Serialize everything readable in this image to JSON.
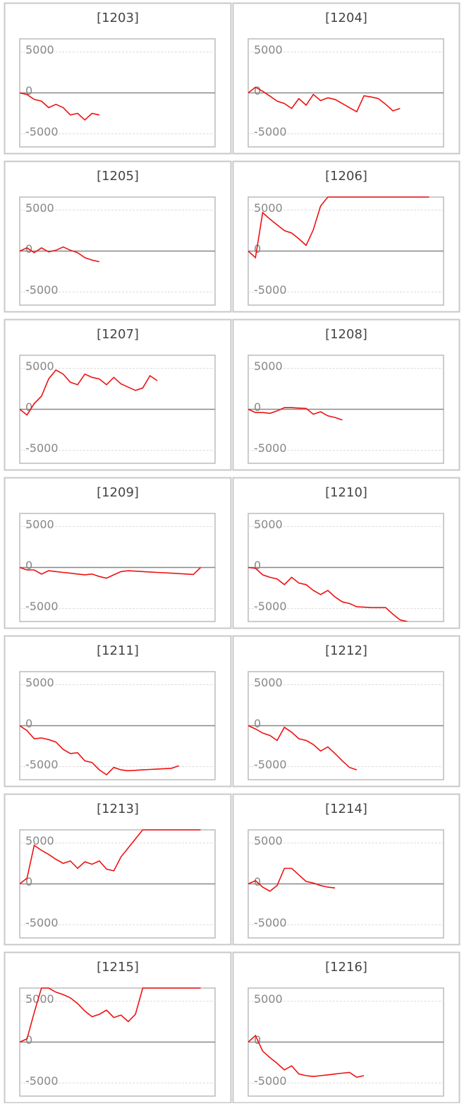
{
  "chart_data": [
    {
      "type": "line",
      "title": "[1203]",
      "color": "#ee1111",
      "ylim": [
        -6600,
        6600
      ],
      "xlim": [
        0,
        27
      ],
      "yticks": [
        -5000,
        0,
        5000
      ],
      "grid": true,
      "values": [
        0,
        -200,
        -800,
        -1000,
        -1800,
        -1400,
        -1800,
        -2700,
        -2500,
        -3300,
        -2500,
        -2700
      ]
    },
    {
      "type": "line",
      "title": "[1204]",
      "color": "#ee1111",
      "ylim": [
        -6600,
        6600
      ],
      "xlim": [
        0,
        27
      ],
      "yticks": [
        -5000,
        0,
        5000
      ],
      "grid": true,
      "values": [
        0,
        700,
        200,
        -400,
        -1000,
        -1300,
        -1900,
        -700,
        -1500,
        -200,
        -950,
        -600,
        -800,
        -1300,
        -1800,
        -2300,
        -350,
        -500,
        -700,
        -1400,
        -2200,
        -1900
      ]
    },
    {
      "type": "line",
      "title": "[1205]",
      "color": "#ee1111",
      "ylim": [
        -6600,
        6600
      ],
      "xlim": [
        0,
        27
      ],
      "yticks": [
        -5000,
        0,
        5000
      ],
      "grid": true,
      "values": [
        0,
        400,
        -200,
        400,
        -100,
        100,
        500,
        100,
        -200,
        -800,
        -1100,
        -1300
      ]
    },
    {
      "type": "line",
      "title": "[1206]",
      "color": "#ee1111",
      "ylim": [
        -6600,
        6600
      ],
      "xlim": [
        0,
        27
      ],
      "yticks": [
        -5000,
        0,
        5000
      ],
      "grid": true,
      "values": [
        0,
        -800,
        4700,
        3900,
        3200,
        2500,
        2200,
        1500,
        700,
        2600,
        5500,
        6600,
        6600,
        6600,
        6600,
        6600,
        6600,
        6600,
        6600,
        6600,
        6600,
        6600,
        6600,
        6600,
        6600,
        6600
      ]
    },
    {
      "type": "line",
      "title": "[1207]",
      "color": "#ee1111",
      "ylim": [
        -6600,
        6600
      ],
      "xlim": [
        0,
        27
      ],
      "yticks": [
        -5000,
        0,
        5000
      ],
      "grid": true,
      "values": [
        0,
        -700,
        700,
        1600,
        3700,
        4800,
        4300,
        3300,
        3000,
        4300,
        3900,
        3700,
        3000,
        3900,
        3100,
        2700,
        2300,
        2600,
        4100,
        3500
      ]
    },
    {
      "type": "line",
      "title": "[1208]",
      "color": "#ee1111",
      "ylim": [
        -6600,
        6600
      ],
      "xlim": [
        0,
        27
      ],
      "yticks": [
        -5000,
        0,
        5000
      ],
      "grid": true,
      "values": [
        0,
        -400,
        -400,
        -500,
        -200,
        200,
        200,
        150,
        100,
        -600,
        -300,
        -800,
        -1000,
        -1300
      ]
    },
    {
      "type": "line",
      "title": "[1209]",
      "color": "#ee1111",
      "ylim": [
        -6600,
        6600
      ],
      "xlim": [
        0,
        27
      ],
      "yticks": [
        -5000,
        0,
        5000
      ],
      "grid": true,
      "values": [
        0,
        -300,
        -300,
        -800,
        -400,
        -500,
        -600,
        -700,
        -800,
        -900,
        -800,
        -1100,
        -1300,
        -900,
        -500,
        -400,
        -450,
        -500,
        -550,
        -600,
        -650,
        -700,
        -750,
        -800,
        -850,
        0
      ]
    },
    {
      "type": "line",
      "title": "[1210]",
      "color": "#ee1111",
      "ylim": [
        -6600,
        6600
      ],
      "xlim": [
        0,
        27
      ],
      "yticks": [
        -5000,
        0,
        5000
      ],
      "grid": true,
      "values": [
        0,
        -100,
        -900,
        -1200,
        -1400,
        -2100,
        -1200,
        -1900,
        -2100,
        -2800,
        -3300,
        -2800,
        -3600,
        -4200,
        -4400,
        -4800,
        -4850,
        -4900,
        -4900,
        -4900,
        -5700,
        -6400,
        -6600
      ]
    },
    {
      "type": "line",
      "title": "[1211]",
      "color": "#ee1111",
      "ylim": [
        -6600,
        6600
      ],
      "xlim": [
        0,
        27
      ],
      "yticks": [
        -5000,
        0,
        5000
      ],
      "grid": true,
      "values": [
        0,
        -600,
        -1600,
        -1500,
        -1700,
        -2000,
        -2900,
        -3400,
        -3300,
        -4300,
        -4500,
        -5400,
        -6000,
        -5100,
        -5400,
        -5500,
        -5450,
        -5400,
        -5350,
        -5300,
        -5250,
        -5200,
        -4900
      ]
    },
    {
      "type": "line",
      "title": "[1212]",
      "color": "#ee1111",
      "ylim": [
        -6600,
        6600
      ],
      "xlim": [
        0,
        27
      ],
      "yticks": [
        -5000,
        0,
        5000
      ],
      "grid": true,
      "values": [
        0,
        -400,
        -900,
        -1200,
        -1800,
        -200,
        -800,
        -1600,
        -1800,
        -2300,
        -3100,
        -2600,
        -3400,
        -4300,
        -5100,
        -5400
      ]
    },
    {
      "type": "line",
      "title": "[1213]",
      "color": "#ee1111",
      "ylim": [
        -6600,
        6600
      ],
      "xlim": [
        0,
        27
      ],
      "yticks": [
        -5000,
        0,
        5000
      ],
      "grid": true,
      "values": [
        0,
        700,
        4700,
        4100,
        3600,
        3000,
        2500,
        2800,
        1900,
        2700,
        2400,
        2800,
        1800,
        1600,
        3300,
        4400,
        5500,
        6600,
        6600,
        6600,
        6600,
        6600,
        6600,
        6600,
        6600,
        6600
      ]
    },
    {
      "type": "line",
      "title": "[1214]",
      "color": "#ee1111",
      "ylim": [
        -6600,
        6600
      ],
      "xlim": [
        0,
        27
      ],
      "yticks": [
        -5000,
        0,
        5000
      ],
      "grid": true,
      "values": [
        0,
        400,
        -400,
        -900,
        -200,
        1900,
        1900,
        1100,
        300,
        100,
        -200,
        -400,
        -500
      ]
    },
    {
      "type": "line",
      "title": "[1215]",
      "color": "#ee1111",
      "ylim": [
        -6600,
        6600
      ],
      "xlim": [
        0,
        27
      ],
      "yticks": [
        -5000,
        0,
        5000
      ],
      "grid": true,
      "values": [
        0,
        400,
        3600,
        6600,
        6600,
        6100,
        5800,
        5400,
        4700,
        3800,
        3100,
        3400,
        3900,
        3000,
        3300,
        2500,
        3400,
        6600,
        6600,
        6600,
        6600,
        6600,
        6600,
        6600,
        6600,
        6600
      ]
    },
    {
      "type": "line",
      "title": "[1216]",
      "color": "#ee1111",
      "ylim": [
        -6600,
        6600
      ],
      "xlim": [
        0,
        27
      ],
      "yticks": [
        -5000,
        0,
        5000
      ],
      "grid": true,
      "values": [
        0,
        800,
        -1100,
        -1900,
        -2600,
        -3400,
        -2900,
        -3900,
        -4100,
        -4200,
        -4100,
        -4000,
        -3900,
        -3800,
        -3700,
        -4300,
        -4100
      ]
    }
  ]
}
